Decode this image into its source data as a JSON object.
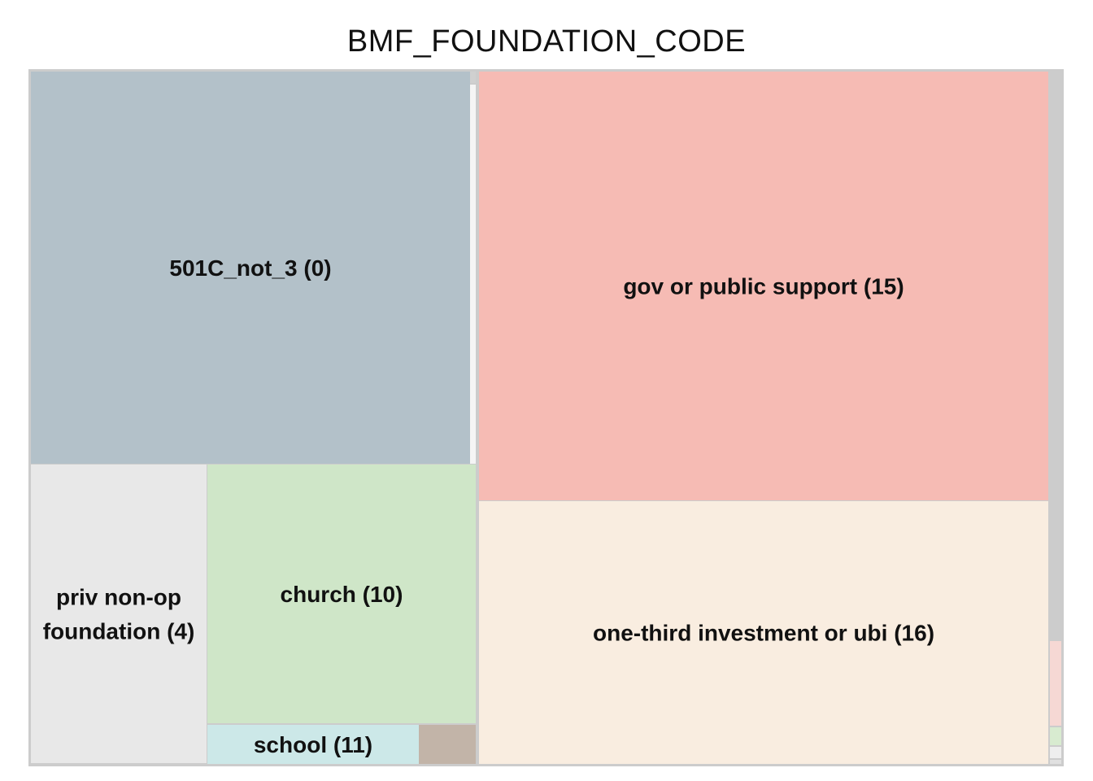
{
  "chart_data": {
    "type": "treemap",
    "title": "BMF_FOUNDATION_CODE",
    "groups": [
      {
        "name": "501C_not_3 (0)",
        "label_lines": [
          "501C_not_3 (0)"
        ],
        "color": "#b3c1c9",
        "tiles": [
          {
            "label_lines": [
              "501C_not_3 (0)"
            ],
            "color": "#b3c1c9"
          },
          {
            "label_lines": [],
            "color": "#f5f5f5"
          },
          {
            "label_lines": [],
            "color": "#d0d0d0"
          }
        ]
      },
      {
        "name": "priv non-op foundation (4)",
        "tiles": [
          {
            "label_lines": [
              "priv non-op",
              "foundation (4)"
            ],
            "color": "#e8e8e8"
          }
        ]
      },
      {
        "name": "church (10)",
        "tiles": [
          {
            "label_lines": [
              "church (10)"
            ],
            "color": "#cfe6c8"
          }
        ]
      },
      {
        "name": "school (11)",
        "tiles": [
          {
            "label_lines": [
              "school (11)"
            ],
            "color": "#cce8e8"
          },
          {
            "label_lines": [],
            "color": "#c2b4a8"
          }
        ]
      },
      {
        "name": "gov or public support (15)",
        "tiles": [
          {
            "label_lines": [
              "gov or public support (15)"
            ],
            "color": "#f6bbb4"
          }
        ]
      },
      {
        "name": "one-third investment or ubi (16)",
        "tiles": [
          {
            "label_lines": [
              "one-third investment or ubi (16)"
            ],
            "color": "#f9ede0"
          }
        ]
      },
      {
        "name": "",
        "tiles": [
          {
            "label_lines": [],
            "color": "#f6d8d4"
          },
          {
            "label_lines": [],
            "color": "#d8ebd0"
          },
          {
            "label_lines": [],
            "color": "#eeeeee"
          },
          {
            "label_lines": [],
            "color": "#e0e0e0"
          }
        ]
      }
    ],
    "border_color": "#cccccc",
    "background_color": "#ffffff"
  }
}
